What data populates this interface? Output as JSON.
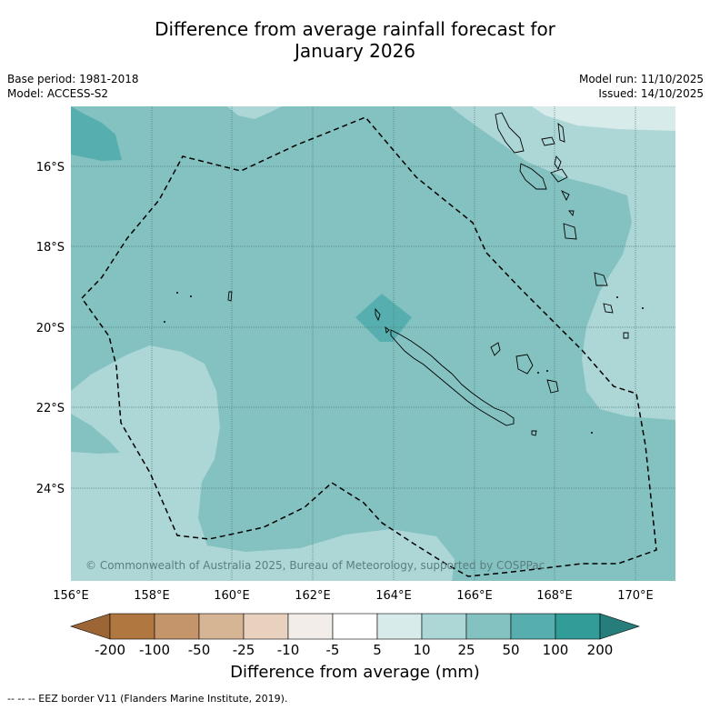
{
  "title_line1": "Difference from average rainfall forecast for",
  "title_line2": "January 2026",
  "base_period": "Base period: 1981-2018",
  "model": "Model: ACCESS-S2",
  "model_run": "Model run: 11/10/2025",
  "issued": "Issued: 14/10/2025",
  "copyright": "© Commonwealth of Australia 2025, Bureau of Meteorology, supported by COSPPac",
  "lon_labels": [
    "156°E",
    "158°E",
    "160°E",
    "162°E",
    "164°E",
    "166°E",
    "168°E",
    "170°E"
  ],
  "lat_labels": [
    "16°S",
    "18°S",
    "20°S",
    "22°S",
    "24°S"
  ],
  "colorbar": {
    "title": "Difference from average (mm)",
    "ticks": [
      "-200",
      "-100",
      "-50",
      "-25",
      "-10",
      "-5",
      "5",
      "10",
      "25",
      "50",
      "100",
      "200"
    ],
    "colors": [
      "#b07840",
      "#c4956a",
      "#d6b594",
      "#e8d2bf",
      "#f2ede9",
      "#ffffff",
      "#d6ebea",
      "#add7d6",
      "#84c2c1",
      "#57aeae",
      "#329c99"
    ],
    "under_color": "#9b6535",
    "over_color": "#267d7a"
  },
  "footer_note": "--  --  -- EEZ border V11 (Flanders Marine Institute, 2019).",
  "map_colors": {
    "base": "#84c2c1",
    "light": "#add7d6",
    "lighter": "#d6ebea",
    "dark": "#57aeae"
  }
}
